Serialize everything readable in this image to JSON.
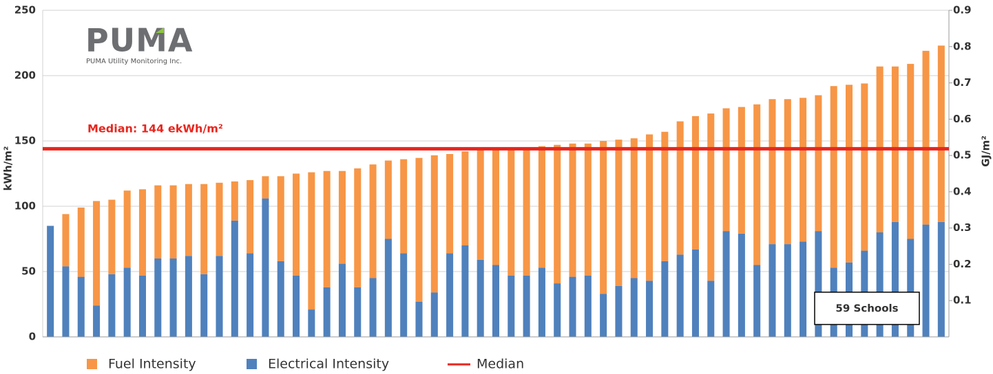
{
  "chart_data": {
    "type": "stacked_bar",
    "logo": {
      "name": "PUMA",
      "tagline": "PUMA Utility Monitoring Inc."
    },
    "ylabel": "kWh/m²",
    "y2label": "GJ/m²",
    "annotations": {
      "median_label": "Median: 144 ekWh/m²",
      "count_label": "59 Schools"
    },
    "categories": [
      null,
      null,
      null,
      null,
      null,
      null,
      null,
      null,
      null,
      null,
      null,
      null,
      null,
      null,
      null,
      null,
      null,
      null,
      null,
      null,
      null,
      null,
      null,
      null,
      null,
      null,
      null,
      null,
      null,
      null,
      null,
      null,
      null,
      null,
      null,
      null,
      null,
      null,
      null,
      null,
      null,
      null,
      null,
      null,
      null,
      null,
      null,
      null,
      null,
      null,
      null,
      null,
      null,
      null,
      null,
      null,
      null,
      null,
      null
    ],
    "series": [
      {
        "name": "Fuel Intensity",
        "color": "#f79646",
        "values": [
          0,
          40,
          53,
          80,
          57,
          59,
          66,
          56,
          56,
          55,
          69,
          56,
          30,
          56,
          17,
          65,
          78,
          105,
          89,
          71,
          91,
          87,
          60,
          72,
          110,
          105,
          76,
          72,
          85,
          90,
          98,
          98,
          93,
          106,
          102,
          101,
          117,
          112,
          107,
          112,
          99,
          102,
          102,
          128,
          94,
          97,
          123,
          111,
          111,
          110,
          104,
          139,
          136,
          128,
          127,
          119,
          134,
          133,
          135
        ]
      },
      {
        "name": "Electrical Intensity",
        "color": "#4f81bd",
        "values": [
          85,
          54,
          46,
          24,
          48,
          53,
          47,
          60,
          60,
          62,
          48,
          62,
          89,
          64,
          106,
          58,
          47,
          21,
          38,
          56,
          38,
          45,
          75,
          64,
          27,
          34,
          64,
          70,
          59,
          55,
          47,
          47,
          53,
          41,
          46,
          47,
          33,
          39,
          45,
          43,
          58,
          63,
          67,
          43,
          81,
          79,
          55,
          71,
          71,
          73,
          81,
          53,
          57,
          66,
          80,
          88,
          75,
          86,
          88
        ]
      }
    ],
    "median": {
      "name": "Median",
      "value": 144,
      "color": "#e8261e"
    },
    "ylim": [
      0,
      250
    ],
    "yticks": [
      0,
      50,
      100,
      150,
      200,
      250
    ],
    "y2lim": [
      0,
      0.9
    ],
    "y2ticks": [
      0.1,
      0.2,
      0.3,
      0.4,
      0.5,
      0.6,
      0.7,
      0.8,
      0.9
    ],
    "grid": true
  }
}
